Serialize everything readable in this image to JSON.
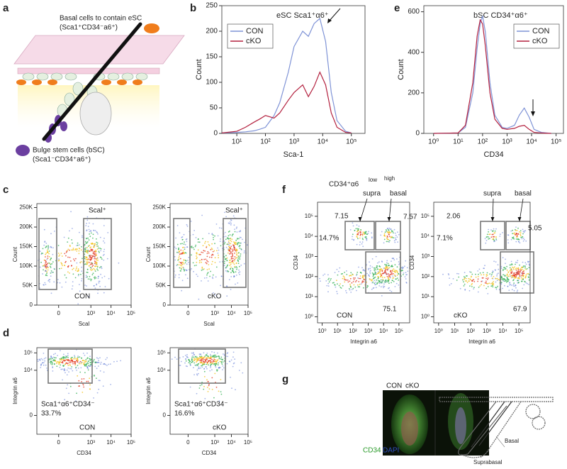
{
  "letters": [
    "a",
    "b",
    "c",
    "d",
    "e",
    "f",
    "g"
  ],
  "panel_a": {
    "top_label": "Basal cells to contain eSC",
    "top_marker": "(Sca1⁺CD34⁻a6⁺)",
    "bottom_label": "Bulge stem cells (bSC)",
    "bottom_marker": "(Sca1⁻CD34⁺a6⁺)"
  },
  "chart_data": [
    {
      "type": "histogram",
      "title": "eSC Sca1⁺α6⁺",
      "xlabel": "Sca-1",
      "ylabel": "Count",
      "xscale": "log",
      "xlim": [
        3,
        300000
      ],
      "ylim": [
        0,
        250
      ],
      "xticks": [
        {
          "value": 10,
          "label": "10¹"
        },
        {
          "value": 100,
          "label": "10²"
        },
        {
          "value": 1000,
          "label": "10³"
        },
        {
          "value": 10000,
          "label": "10⁴"
        },
        {
          "value": 100000,
          "label": "10⁵"
        }
      ],
      "yticks": [
        0,
        50,
        100,
        150,
        200,
        250
      ],
      "legend": "upper left",
      "x": [
        3,
        10,
        20,
        40,
        63,
        100,
        200,
        316,
        631,
        1000,
        2000,
        3162,
        5012,
        7943,
        12589,
        19953,
        31623,
        63096,
        100000
      ],
      "series": [
        {
          "name": "CON",
          "color": "#7f93d6",
          "values": [
            1,
            2,
            3,
            5,
            8,
            12,
            35,
            60,
            120,
            170,
            200,
            190,
            215,
            225,
            180,
            80,
            25,
            4,
            1
          ]
        },
        {
          "name": "cKO",
          "color": "#b3203e",
          "values": [
            1,
            4,
            12,
            22,
            28,
            35,
            30,
            40,
            65,
            80,
            95,
            72,
            92,
            120,
            95,
            40,
            12,
            2,
            1
          ]
        }
      ]
    },
    {
      "type": "histogram",
      "title": "bSC CD34⁺α6⁺",
      "xlabel": "CD34",
      "ylabel": "Count",
      "xscale": "log",
      "xlim": [
        0.4,
        200000
      ],
      "ylim": [
        0,
        630
      ],
      "xticks": [
        {
          "value": 1,
          "label": "10⁰"
        },
        {
          "value": 10,
          "label": "10¹"
        },
        {
          "value": 100,
          "label": "10²"
        },
        {
          "value": 1000,
          "label": "10³"
        },
        {
          "value": 10000,
          "label": "10⁴"
        },
        {
          "value": 100000,
          "label": "10⁵"
        }
      ],
      "yticks": [
        0,
        200,
        400,
        600
      ],
      "legend": "upper right",
      "x": [
        1,
        10,
        20,
        40,
        60,
        80,
        100,
        130,
        200,
        316,
        631,
        1000,
        2000,
        3162,
        5012,
        7943,
        12589,
        25119,
        63096
      ],
      "series": [
        {
          "name": "CON",
          "color": "#7f93d6",
          "values": [
            0,
            2,
            30,
            200,
            420,
            540,
            580,
            500,
            250,
            90,
            30,
            25,
            40,
            90,
            125,
            80,
            20,
            5,
            0
          ]
        },
        {
          "name": "cKO",
          "color": "#b3203e",
          "values": [
            0,
            2,
            40,
            250,
            480,
            560,
            540,
            430,
            200,
            70,
            25,
            20,
            25,
            35,
            40,
            20,
            5,
            2,
            0
          ]
        }
      ]
    },
    {
      "type": "density",
      "xlabel": "Scal",
      "ylabel": "Count",
      "xscale": "biexponential",
      "xlim": [
        -300,
        100000
      ],
      "ylim": [
        0,
        260000
      ],
      "xticks": [
        0,
        {
          "value": 1000,
          "label": "10³"
        },
        {
          "value": 10000,
          "label": "10⁴"
        },
        {
          "value": 100000,
          "label": "10⁵"
        }
      ],
      "yticks": [
        {
          "value": 0,
          "label": "0"
        },
        {
          "value": 50000,
          "label": "50K"
        },
        {
          "value": 100000,
          "label": "100K"
        },
        {
          "value": 150000,
          "label": "150K"
        },
        {
          "value": 200000,
          "label": "200K"
        },
        {
          "value": 250000,
          "label": "250K"
        }
      ],
      "annotations": [
        "Scal⁺",
        "CON"
      ]
    },
    {
      "type": "density",
      "xlabel": "Scal",
      "ylabel": "Count",
      "xscale": "biexponential",
      "xlim": [
        -300,
        100000
      ],
      "ylim": [
        0,
        260000
      ],
      "xticks": [
        0,
        {
          "value": 1000,
          "label": "10³"
        },
        {
          "value": 10000,
          "label": "10⁴"
        },
        {
          "value": 100000,
          "label": "10⁵"
        }
      ],
      "yticks": [
        {
          "value": 0,
          "label": "0"
        },
        {
          "value": 50000,
          "label": "50K"
        },
        {
          "value": 100000,
          "label": "100K"
        },
        {
          "value": 150000,
          "label": "150K"
        },
        {
          "value": 200000,
          "label": "200K"
        },
        {
          "value": 250000,
          "label": "250K"
        }
      ],
      "annotations": [
        "Scal⁺",
        "cKO"
      ]
    },
    {
      "type": "density",
      "xlabel": "CD34",
      "ylabel": "Integrin a6",
      "xscale": "biexponential",
      "yscale": "biexponential",
      "xlim": [
        -300,
        100000
      ],
      "ylim": [
        -300,
        200000
      ],
      "xticks": [
        0,
        {
          "value": 1000,
          "label": "10³"
        },
        {
          "value": 10000,
          "label": "10⁴"
        },
        {
          "value": 100000,
          "label": "10⁵"
        }
      ],
      "yticks": [
        0,
        {
          "value": 10000,
          "label": "10⁴"
        },
        {
          "value": 100000,
          "label": "10⁵"
        }
      ],
      "annotations": [
        "Sca1⁺α6⁺CD34⁻",
        "33.7%",
        "CON"
      ]
    },
    {
      "type": "density",
      "xlabel": "CD34",
      "ylabel": "Integrin a6",
      "xscale": "biexponential",
      "yscale": "biexponential",
      "xlim": [
        -300,
        100000
      ],
      "ylim": [
        -300,
        200000
      ],
      "xticks": [
        0,
        {
          "value": 1000,
          "label": "10³"
        },
        {
          "value": 10000,
          "label": "10⁴"
        },
        {
          "value": 100000,
          "label": "10⁵"
        }
      ],
      "yticks": [
        0,
        {
          "value": 10000,
          "label": "10⁴"
        },
        {
          "value": 100000,
          "label": "10⁵"
        }
      ],
      "annotations": [
        "Sca1⁺α6⁺CD34⁻",
        "16.6%",
        "cKO"
      ]
    },
    {
      "type": "density",
      "xlabel": "Integrin a6",
      "ylabel": "CD34",
      "xscale": "log",
      "yscale": "log",
      "xlim": [
        0.5,
        500000
      ],
      "ylim": [
        0.5,
        500000
      ],
      "xticks": [
        {
          "value": 1,
          "label": "10⁰"
        },
        {
          "value": 10,
          "label": "10¹"
        },
        {
          "value": 100,
          "label": "10²"
        },
        {
          "value": 1000,
          "label": "10³"
        },
        {
          "value": 10000,
          "label": "10⁴"
        },
        {
          "value": 100000,
          "label": "10⁵"
        }
      ],
      "yticks": [
        {
          "value": 1,
          "label": "10⁰"
        },
        {
          "value": 10,
          "label": "10¹"
        },
        {
          "value": 100,
          "label": "10²"
        },
        {
          "value": 1000,
          "label": "10³"
        },
        {
          "value": 10000,
          "label": "10⁴"
        },
        {
          "value": 100000,
          "label": "10⁵"
        }
      ],
      "annotations": [
        "CD34⁺α6",
        "low",
        "high",
        "supra",
        "basal",
        "7.15",
        "7.57",
        "14.7%",
        "75.1",
        "CON"
      ]
    },
    {
      "type": "density",
      "xlabel": "Integrin a6",
      "ylabel": "CD34",
      "xscale": "log",
      "yscale": "log",
      "xlim": [
        0.5,
        500000
      ],
      "ylim": [
        0.5,
        500000
      ],
      "xticks": [
        {
          "value": 1,
          "label": "10⁰"
        },
        {
          "value": 10,
          "label": "10¹"
        },
        {
          "value": 100,
          "label": "10²"
        },
        {
          "value": 1000,
          "label": "10³"
        },
        {
          "value": 10000,
          "label": "10⁴"
        },
        {
          "value": 100000,
          "label": "10⁵"
        }
      ],
      "yticks": [
        {
          "value": 1,
          "label": "10⁰"
        },
        {
          "value": 10,
          "label": "10¹"
        },
        {
          "value": 100,
          "label": "10²"
        },
        {
          "value": 1000,
          "label": "10³"
        },
        {
          "value": 10000,
          "label": "10⁴"
        },
        {
          "value": 100000,
          "label": "10⁵"
        }
      ],
      "annotations": [
        "supra",
        "basal",
        "2.06",
        "5.05",
        "7.1%",
        "67.9",
        "cKO"
      ]
    }
  ],
  "panel_g": {
    "con": "CON",
    "cko": "cKO",
    "stain1": "CD34",
    "stain2": "DAPI",
    "basal": "Basal",
    "suprabasal": "Suprabasal"
  }
}
